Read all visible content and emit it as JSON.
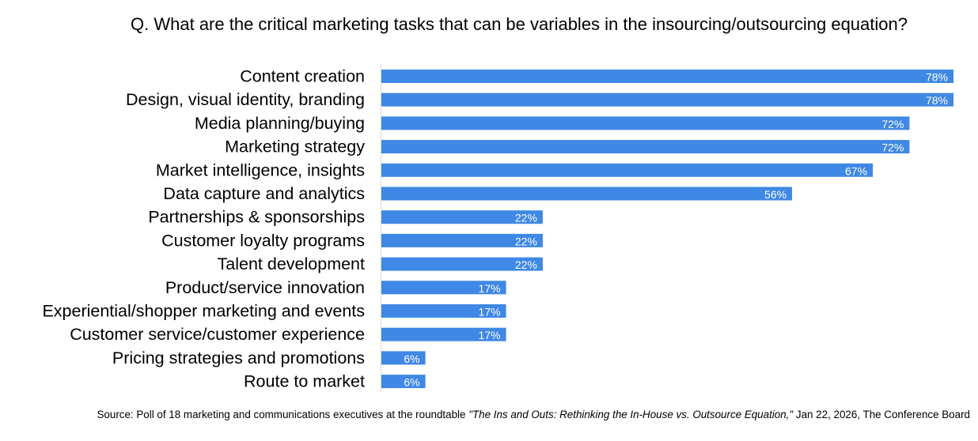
{
  "chart_data": {
    "type": "bar",
    "orientation": "horizontal",
    "title": "Q. What are the critical marketing tasks that can be variables in the insourcing/outsourcing equation?",
    "categories": [
      "Content creation",
      "Design, visual identity, branding",
      "Media planning/buying",
      "Marketing strategy",
      "Market intelligence, insights",
      "Data capture and analytics",
      "Partnerships & sponsorships",
      "Customer loyalty programs",
      "Talent development",
      "Product/service innovation",
      "Experiential/shopper marketing and events",
      "Customer service/customer experience",
      "Pricing strategies and promotions",
      "Route to market"
    ],
    "values": [
      78,
      78,
      72,
      72,
      67,
      56,
      22,
      22,
      22,
      17,
      17,
      17,
      6,
      6
    ],
    "labels": [
      "78%",
      "78%",
      "72%",
      "72%",
      "67%",
      "56%",
      "22%",
      "22%",
      "22%",
      "17%",
      "17%",
      "17%",
      "6%",
      "6%"
    ],
    "unit": "%",
    "xlim": [
      0,
      78
    ],
    "xlabel": "",
    "ylabel": "",
    "grid": false,
    "legend": "none",
    "bar_color": "#3f88e5",
    "label_color": "#ffffff"
  },
  "source": {
    "prefix": "Source: Poll of 18 marketing and communications executives at the roundtable ",
    "title": "\"The Ins and Outs: Rethinking the In-House vs. Outsource Equation,\"",
    "suffix": " Jan 22, 2026, The Conference Board"
  }
}
